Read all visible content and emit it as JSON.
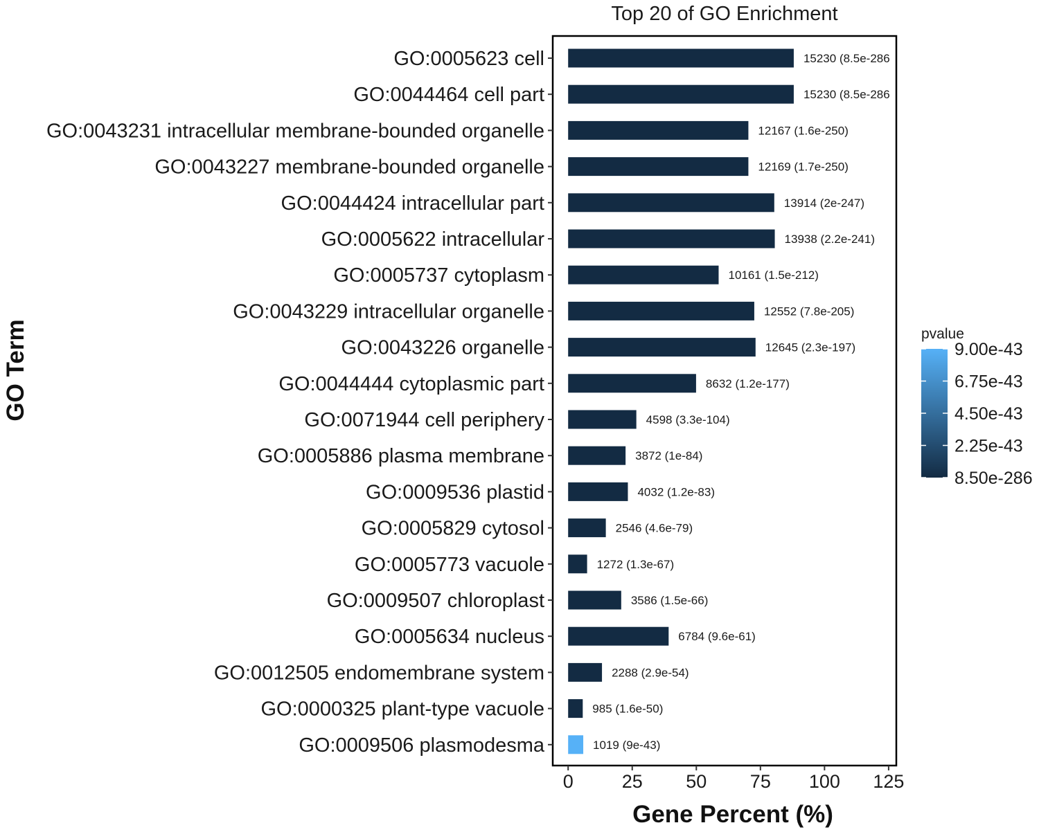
{
  "chart_data": {
    "type": "bar",
    "orientation": "horizontal",
    "title": "Top 20 of GO Enrichment",
    "xlabel": "Gene Percent (%)",
    "ylabel": "GO Term",
    "xlim": [
      -6,
      128
    ],
    "xticks": [
      "0",
      "25",
      "50",
      "75",
      "100",
      "125"
    ],
    "xtick_values": [
      0,
      25,
      50,
      75,
      100,
      125
    ],
    "categories": [
      "GO:0005623 cell",
      "GO:0044464 cell part",
      "GO:0043231 intracellular membrane-bounded organelle",
      "GO:0043227 membrane-bounded organelle",
      "GO:0044424 intracellular part",
      "GO:0005622 intracellular",
      "GO:0005737 cytoplasm",
      "GO:0043229 intracellular organelle",
      "GO:0043226 organelle",
      "GO:0044444 cytoplasmic part",
      "GO:0071944 cell periphery",
      "GO:0005886 plasma membrane",
      "GO:0009536 plastid",
      "GO:0005829 cytosol",
      "GO:0005773 vacuole",
      "GO:0009507 chloroplast",
      "GO:0005634 nucleus",
      "GO:0012505 endomembrane system",
      "GO:0000325 plant-type vacuole",
      "GO:0009506 plasmodesma"
    ],
    "values": [
      88,
      88,
      70.3,
      70.3,
      80.4,
      80.6,
      58.7,
      72.6,
      73.1,
      49.9,
      26.6,
      22.4,
      23.3,
      14.7,
      7.4,
      20.7,
      39.2,
      13.2,
      5.7,
      5.9
    ],
    "data_labels": [
      "15230 (8.5e-286",
      "15230 (8.5e-286",
      "12167 (1.6e-250)",
      "12169 (1.7e-250)",
      "13914 (2e-247)",
      "13938 (2.2e-241)",
      "10161 (1.5e-212)",
      "12552 (7.8e-205)",
      "12645 (2.3e-197)",
      "8632 (1.2e-177)",
      "4598 (3.3e-104)",
      "3872 (1e-84)",
      "4032 (1.2e-83)",
      "2546 (4.6e-79)",
      "1272 (1.3e-67)",
      "3586 (1.5e-66)",
      "6784 (9.6e-61)",
      "2288 (2.9e-54)",
      "985 (1.6e-50)",
      "1019 (9e-43)"
    ],
    "pvalues": [
      8.5e-286,
      8.5e-286,
      1.6e-250,
      1.7e-250,
      2e-247,
      2.2e-241,
      1.5e-212,
      7.8e-205,
      2.3e-197,
      1.2e-177,
      3.3e-104,
      1e-84,
      1.2e-83,
      4.6e-79,
      1.3e-67,
      1.5e-66,
      9.6e-61,
      2.9e-54,
      1.6e-50,
      9e-43
    ],
    "colorbar": {
      "title": "pvalue",
      "tick_labels": [
        "9.00e-43",
        "6.75e-43",
        "4.50e-43",
        "2.25e-43",
        "8.50e-286"
      ],
      "tick_values": [
        9e-43,
        6.75e-43,
        4.5e-43,
        2.25e-43,
        8.5e-286
      ],
      "range": [
        8.5e-286,
        9e-43
      ],
      "low_color": "#132b43",
      "high_color": "#56b1f7"
    },
    "grid": false,
    "legend_position": "right"
  }
}
